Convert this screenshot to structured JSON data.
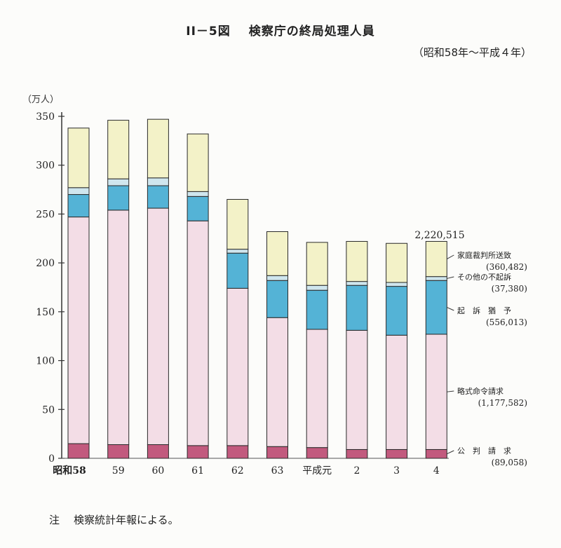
{
  "chart_data": {
    "type": "bar",
    "stacked": true,
    "title_number": "II－5図",
    "title": "検察庁の終局処理人員",
    "subtitle": "（昭和58年～平成４年）",
    "ylabel": "（万人）",
    "ylim": [
      0,
      350
    ],
    "yticks": [
      0,
      50,
      100,
      150,
      200,
      250,
      300,
      350
    ],
    "categories": [
      "昭和58",
      "59",
      "60",
      "61",
      "62",
      "63",
      "平成元",
      "2",
      "3",
      "4"
    ],
    "series": [
      {
        "name": "公判請求",
        "color": "#c25a7e",
        "values": [
          15,
          14,
          14,
          13,
          13,
          12,
          11,
          9,
          9,
          9
        ]
      },
      {
        "name": "略式命令請求",
        "color": "#f3dde6",
        "values": [
          232,
          240,
          242,
          230,
          161,
          132,
          121,
          122,
          117,
          118
        ]
      },
      {
        "name": "起訴猶予",
        "color": "#54b3d6",
        "values": [
          23,
          25,
          23,
          25,
          36,
          38,
          40,
          46,
          50,
          55
        ]
      },
      {
        "name": "その他の不起訴",
        "color": "#cfe6ee",
        "values": [
          7,
          7,
          8,
          5,
          4,
          5,
          5,
          4,
          4,
          4
        ]
      },
      {
        "name": "家庭裁判所送致",
        "color": "#f3f2c8",
        "values": [
          61,
          60,
          60,
          59,
          51,
          45,
          44,
          41,
          40,
          36
        ]
      }
    ],
    "annotations": {
      "total_last": "2,220,515",
      "legend": [
        {
          "label": "家庭裁判所送致",
          "value": "(360,482)"
        },
        {
          "label": "その他の不起訴",
          "value": "(37,380)"
        },
        {
          "label": "起　訴　猶　予",
          "value": "(556,013)"
        },
        {
          "label": "略式命令請求",
          "value": "(1,177,582)"
        },
        {
          "label": "公　判　請　求",
          "value": "(89,058)"
        }
      ]
    }
  },
  "note": {
    "mark": "注",
    "text": "検察統計年報による。"
  }
}
